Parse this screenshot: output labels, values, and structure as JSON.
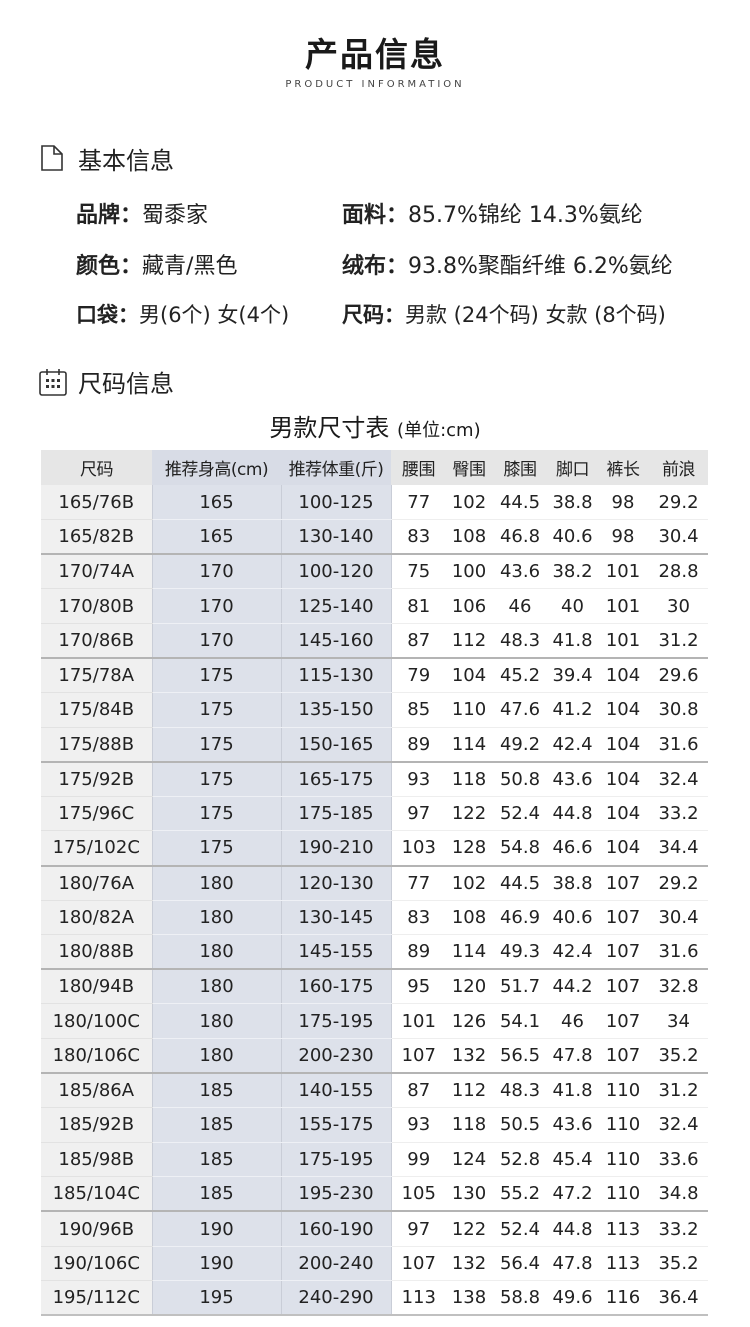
{
  "header": {
    "title": "产品信息",
    "subtitle": "PRODUCT INFORMATION"
  },
  "basic": {
    "heading": "基本信息",
    "icon": "document-icon",
    "items": [
      {
        "key": "品牌",
        "value": "蜀黍家"
      },
      {
        "key": "面料",
        "value": "85.7%锦纶  14.3%氨纶"
      },
      {
        "key": "颜色",
        "value": "藏青/黑色"
      },
      {
        "key": "绒布",
        "value": "93.8%聚酯纤维  6.2%氨纶"
      },
      {
        "key": "口袋",
        "value": "男(6个) 女(4个)"
      },
      {
        "key": "尺码",
        "value": "男款 (24个码) 女款 (8个码)"
      }
    ],
    "separator": "："
  },
  "size_section": {
    "heading": "尺码信息",
    "icon": "calendar-icon",
    "table_title": "男款尺寸表",
    "table_unit": "(单位:cm)",
    "columns": [
      "尺码",
      "推荐身高(cm)",
      "推荐体重(斤)",
      "腰围",
      "臀围",
      "膝围",
      "脚口",
      "裤长",
      "前浪"
    ],
    "rows": [
      [
        "165/76B",
        "165",
        "100-125",
        "77",
        "102",
        "44.5",
        "38.8",
        "98",
        "29.2"
      ],
      [
        "165/82B",
        "165",
        "130-140",
        "83",
        "108",
        "46.8",
        "40.6",
        "98",
        "30.4"
      ],
      [
        "170/74A",
        "170",
        "100-120",
        "75",
        "100",
        "43.6",
        "38.2",
        "101",
        "28.8"
      ],
      [
        "170/80B",
        "170",
        "125-140",
        "81",
        "106",
        "46",
        "40",
        "101",
        "30"
      ],
      [
        "170/86B",
        "170",
        "145-160",
        "87",
        "112",
        "48.3",
        "41.8",
        "101",
        "31.2"
      ],
      [
        "175/78A",
        "175",
        "115-130",
        "79",
        "104",
        "45.2",
        "39.4",
        "104",
        "29.6"
      ],
      [
        "175/84B",
        "175",
        "135-150",
        "85",
        "110",
        "47.6",
        "41.2",
        "104",
        "30.8"
      ],
      [
        "175/88B",
        "175",
        "150-165",
        "89",
        "114",
        "49.2",
        "42.4",
        "104",
        "31.6"
      ],
      [
        "175/92B",
        "175",
        "165-175",
        "93",
        "118",
        "50.8",
        "43.6",
        "104",
        "32.4"
      ],
      [
        "175/96C",
        "175",
        "175-185",
        "97",
        "122",
        "52.4",
        "44.8",
        "104",
        "33.2"
      ],
      [
        "175/102C",
        "175",
        "190-210",
        "103",
        "128",
        "54.8",
        "46.6",
        "104",
        "34.4"
      ],
      [
        "180/76A",
        "180",
        "120-130",
        "77",
        "102",
        "44.5",
        "38.8",
        "107",
        "29.2"
      ],
      [
        "180/82A",
        "180",
        "130-145",
        "83",
        "108",
        "46.9",
        "40.6",
        "107",
        "30.4"
      ],
      [
        "180/88B",
        "180",
        "145-155",
        "89",
        "114",
        "49.3",
        "42.4",
        "107",
        "31.6"
      ],
      [
        "180/94B",
        "180",
        "160-175",
        "95",
        "120",
        "51.7",
        "44.2",
        "107",
        "32.8"
      ],
      [
        "180/100C",
        "180",
        "175-195",
        "101",
        "126",
        "54.1",
        "46",
        "107",
        "34"
      ],
      [
        "180/106C",
        "180",
        "200-230",
        "107",
        "132",
        "56.5",
        "47.8",
        "107",
        "35.2"
      ],
      [
        "185/86A",
        "185",
        "140-155",
        "87",
        "112",
        "48.3",
        "41.8",
        "110",
        "31.2"
      ],
      [
        "185/92B",
        "185",
        "155-175",
        "93",
        "118",
        "50.5",
        "43.6",
        "110",
        "32.4"
      ],
      [
        "185/98B",
        "185",
        "175-195",
        "99",
        "124",
        "52.8",
        "45.4",
        "110",
        "33.6"
      ],
      [
        "185/104C",
        "185",
        "195-230",
        "105",
        "130",
        "55.2",
        "47.2",
        "110",
        "34.8"
      ],
      [
        "190/96B",
        "190",
        "160-190",
        "97",
        "122",
        "52.4",
        "44.8",
        "113",
        "33.2"
      ],
      [
        "190/106C",
        "190",
        "200-240",
        "107",
        "132",
        "56.4",
        "47.8",
        "113",
        "35.2"
      ],
      [
        "195/112C",
        "195",
        "240-290",
        "113",
        "138",
        "58.8",
        "49.6",
        "116",
        "36.4"
      ]
    ],
    "group_end_rows": [
      1,
      4,
      7,
      10,
      13,
      16,
      20
    ],
    "highlight_columns": [
      1,
      2
    ]
  }
}
